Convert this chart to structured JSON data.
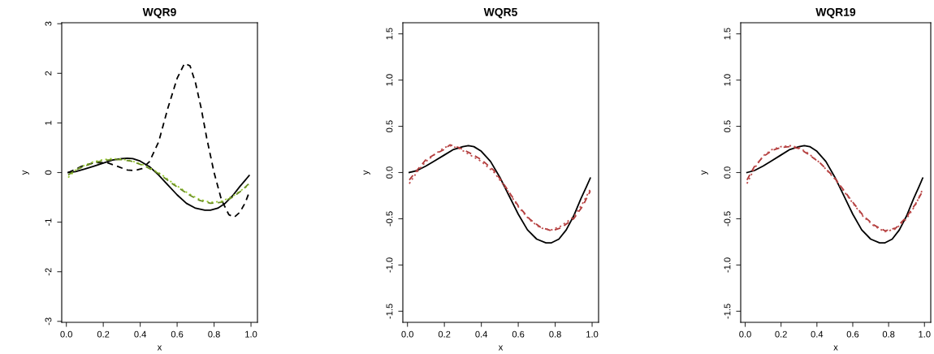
{
  "chart_data": [
    {
      "type": "line",
      "title": "WQR9",
      "xlabel": "x",
      "ylabel": "y",
      "xlim": [
        -0.025,
        1.035
      ],
      "ylim": [
        -3.02,
        3.02
      ],
      "xticks": [
        {
          "value": 0,
          "label": "0.0"
        },
        {
          "value": 0.2,
          "label": "0.2"
        },
        {
          "value": 0.4,
          "label": "0.4"
        },
        {
          "value": 0.6,
          "label": "0.6"
        },
        {
          "value": 0.8,
          "label": "0.8"
        },
        {
          "value": 1,
          "label": "1.0"
        }
      ],
      "yticks": [
        -3,
        -2,
        -1,
        0,
        1,
        2,
        3
      ],
      "grid": false,
      "series": [
        {
          "color": "#000000",
          "line_style": "solid",
          "x": [
            0.01,
            0.05,
            0.1,
            0.15,
            0.2,
            0.25,
            0.3,
            0.33,
            0.36,
            0.4,
            0.45,
            0.5,
            0.55,
            0.6,
            0.65,
            0.7,
            0.75,
            0.78,
            0.82,
            0.86,
            0.9,
            0.94,
            0.97,
            0.99
          ],
          "values": [
            0,
            0.02,
            0.07,
            0.13,
            0.19,
            0.25,
            0.28,
            0.29,
            0.28,
            0.23,
            0.12,
            -0.05,
            -0.25,
            -0.45,
            -0.62,
            -0.72,
            -0.76,
            -0.76,
            -0.72,
            -0.62,
            -0.47,
            -0.28,
            -0.15,
            -0.06
          ]
        },
        {
          "color": "#000000",
          "line_style": "dashed",
          "x": [
            0.01,
            0.08,
            0.15,
            0.22,
            0.28,
            0.33,
            0.37,
            0.41,
            0.45,
            0.5,
            0.55,
            0.6,
            0.64,
            0.67,
            0.7,
            0.73,
            0.76,
            0.8,
            0.84,
            0.88,
            0.91,
            0.94,
            0.97,
            0.99
          ],
          "values": [
            0,
            0.12,
            0.2,
            0.2,
            0.12,
            0.05,
            0.04,
            0.08,
            0.22,
            0.62,
            1.3,
            1.9,
            2.2,
            2.15,
            1.8,
            1.3,
            0.7,
            0,
            -0.55,
            -0.85,
            -0.9,
            -0.8,
            -0.6,
            -0.4
          ]
        },
        {
          "color": "#9acd32",
          "line_style": "dotted",
          "x": [
            0.01,
            0.05,
            0.1,
            0.15,
            0.2,
            0.25,
            0.3,
            0.35,
            0.42,
            0.5,
            0.58,
            0.66,
            0.72,
            0.78,
            0.84,
            0.9,
            0.95,
            0.99
          ],
          "values": [
            -0.1,
            0.05,
            0.15,
            0.22,
            0.26,
            0.28,
            0.27,
            0.24,
            0.15,
            0.0,
            -0.22,
            -0.42,
            -0.54,
            -0.6,
            -0.58,
            -0.48,
            -0.35,
            -0.25
          ]
        },
        {
          "color": "#6b8e23",
          "line_style": "dashed",
          "x": [
            0.01,
            0.05,
            0.1,
            0.15,
            0.2,
            0.25,
            0.3,
            0.35,
            0.42,
            0.5,
            0.58,
            0.66,
            0.72,
            0.78,
            0.84,
            0.9,
            0.95,
            0.99
          ],
          "values": [
            -0.05,
            0.05,
            0.13,
            0.2,
            0.24,
            0.26,
            0.26,
            0.23,
            0.14,
            -0.02,
            -0.24,
            -0.44,
            -0.56,
            -0.62,
            -0.6,
            -0.5,
            -0.36,
            -0.22
          ]
        }
      ]
    },
    {
      "type": "line",
      "title": "WQR5",
      "xlabel": "x",
      "ylabel": "y",
      "xlim": [
        -0.025,
        1.035
      ],
      "ylim": [
        -1.62,
        1.62
      ],
      "xticks": [
        {
          "value": 0,
          "label": "0.0"
        },
        {
          "value": 0.2,
          "label": "0.2"
        },
        {
          "value": 0.4,
          "label": "0.4"
        },
        {
          "value": 0.6,
          "label": "0.6"
        },
        {
          "value": 0.8,
          "label": "0.8"
        },
        {
          "value": 1,
          "label": "1.0"
        }
      ],
      "yticks": [
        {
          "value": -1.5,
          "label": "-1.5"
        },
        {
          "value": -1,
          "label": "-1.0"
        },
        {
          "value": -0.5,
          "label": "-0.5"
        },
        {
          "value": 0,
          "label": "0.0"
        },
        {
          "value": 0.5,
          "label": "0.5"
        },
        {
          "value": 1,
          "label": "1.0"
        },
        {
          "value": 1.5,
          "label": "1.5"
        }
      ],
      "grid": false,
      "series": [
        {
          "color": "#000000",
          "line_style": "solid",
          "x": [
            0.01,
            0.05,
            0.1,
            0.15,
            0.2,
            0.25,
            0.3,
            0.33,
            0.36,
            0.4,
            0.45,
            0.5,
            0.55,
            0.6,
            0.65,
            0.7,
            0.75,
            0.78,
            0.82,
            0.86,
            0.9,
            0.94,
            0.97,
            0.99
          ],
          "values": [
            0,
            0.02,
            0.07,
            0.13,
            0.19,
            0.25,
            0.28,
            0.29,
            0.28,
            0.23,
            0.12,
            -0.05,
            -0.25,
            -0.45,
            -0.62,
            -0.72,
            -0.76,
            -0.76,
            -0.72,
            -0.62,
            -0.47,
            -0.28,
            -0.15,
            -0.06
          ]
        },
        {
          "color": "#b03a3a",
          "line_style": "dashed",
          "x": [
            0.01,
            0.05,
            0.1,
            0.15,
            0.2,
            0.23,
            0.28,
            0.33,
            0.4,
            0.47,
            0.53,
            0.6,
            0.66,
            0.72,
            0.78,
            0.83,
            0.9,
            0.95,
            0.99
          ],
          "values": [
            -0.08,
            0.02,
            0.14,
            0.2,
            0.25,
            0.3,
            0.27,
            0.22,
            0.14,
            0.02,
            -0.15,
            -0.36,
            -0.5,
            -0.59,
            -0.63,
            -0.6,
            -0.5,
            -0.36,
            -0.2
          ]
        },
        {
          "color": "#c05050",
          "line_style": "dotted",
          "x": [
            0.01,
            0.05,
            0.1,
            0.15,
            0.2,
            0.23,
            0.28,
            0.33,
            0.4,
            0.47,
            0.53,
            0.6,
            0.66,
            0.72,
            0.78,
            0.83,
            0.9,
            0.95,
            0.99
          ],
          "values": [
            -0.12,
            0.0,
            0.12,
            0.2,
            0.27,
            0.29,
            0.26,
            0.2,
            0.12,
            0.0,
            -0.16,
            -0.37,
            -0.51,
            -0.6,
            -0.62,
            -0.58,
            -0.48,
            -0.33,
            -0.18
          ]
        }
      ]
    },
    {
      "type": "line",
      "title": "WQR19",
      "xlabel": "x",
      "ylabel": "y",
      "xlim": [
        -0.025,
        1.035
      ],
      "ylim": [
        -1.62,
        1.62
      ],
      "xticks": [
        {
          "value": 0,
          "label": "0.0"
        },
        {
          "value": 0.2,
          "label": "0.2"
        },
        {
          "value": 0.4,
          "label": "0.4"
        },
        {
          "value": 0.6,
          "label": "0.6"
        },
        {
          "value": 0.8,
          "label": "0.8"
        },
        {
          "value": 1,
          "label": "1.0"
        }
      ],
      "yticks": [
        {
          "value": -1.5,
          "label": "-1.5"
        },
        {
          "value": -1,
          "label": "-1.0"
        },
        {
          "value": -0.5,
          "label": "-0.5"
        },
        {
          "value": 0,
          "label": "0.0"
        },
        {
          "value": 0.5,
          "label": "0.5"
        },
        {
          "value": 1,
          "label": "1.0"
        },
        {
          "value": 1.5,
          "label": "1.5"
        }
      ],
      "grid": false,
      "series": [
        {
          "color": "#000000",
          "line_style": "solid",
          "x": [
            0.01,
            0.05,
            0.1,
            0.15,
            0.2,
            0.25,
            0.3,
            0.33,
            0.36,
            0.4,
            0.45,
            0.5,
            0.55,
            0.6,
            0.65,
            0.7,
            0.75,
            0.78,
            0.82,
            0.86,
            0.9,
            0.94,
            0.97,
            0.99
          ],
          "values": [
            0,
            0.02,
            0.07,
            0.13,
            0.19,
            0.25,
            0.28,
            0.29,
            0.28,
            0.23,
            0.12,
            -0.05,
            -0.25,
            -0.45,
            -0.62,
            -0.72,
            -0.76,
            -0.76,
            -0.72,
            -0.62,
            -0.47,
            -0.28,
            -0.15,
            -0.06
          ]
        },
        {
          "color": "#b03a3a",
          "line_style": "dashed",
          "x": [
            0.01,
            0.05,
            0.1,
            0.15,
            0.2,
            0.25,
            0.3,
            0.35,
            0.42,
            0.5,
            0.58,
            0.66,
            0.72,
            0.78,
            0.84,
            0.9,
            0.95,
            0.99
          ],
          "values": [
            -0.08,
            0.06,
            0.17,
            0.24,
            0.27,
            0.28,
            0.26,
            0.2,
            0.1,
            -0.06,
            -0.27,
            -0.47,
            -0.57,
            -0.63,
            -0.6,
            -0.48,
            -0.34,
            -0.2
          ]
        },
        {
          "color": "#c05050",
          "line_style": "dotted",
          "x": [
            0.01,
            0.05,
            0.1,
            0.15,
            0.2,
            0.25,
            0.3,
            0.35,
            0.42,
            0.5,
            0.58,
            0.66,
            0.72,
            0.78,
            0.84,
            0.9,
            0.95,
            0.99
          ],
          "values": [
            -0.12,
            0.04,
            0.18,
            0.25,
            0.28,
            0.29,
            0.27,
            0.21,
            0.1,
            -0.07,
            -0.28,
            -0.48,
            -0.58,
            -0.64,
            -0.61,
            -0.5,
            -0.35,
            -0.18
          ]
        }
      ]
    }
  ]
}
